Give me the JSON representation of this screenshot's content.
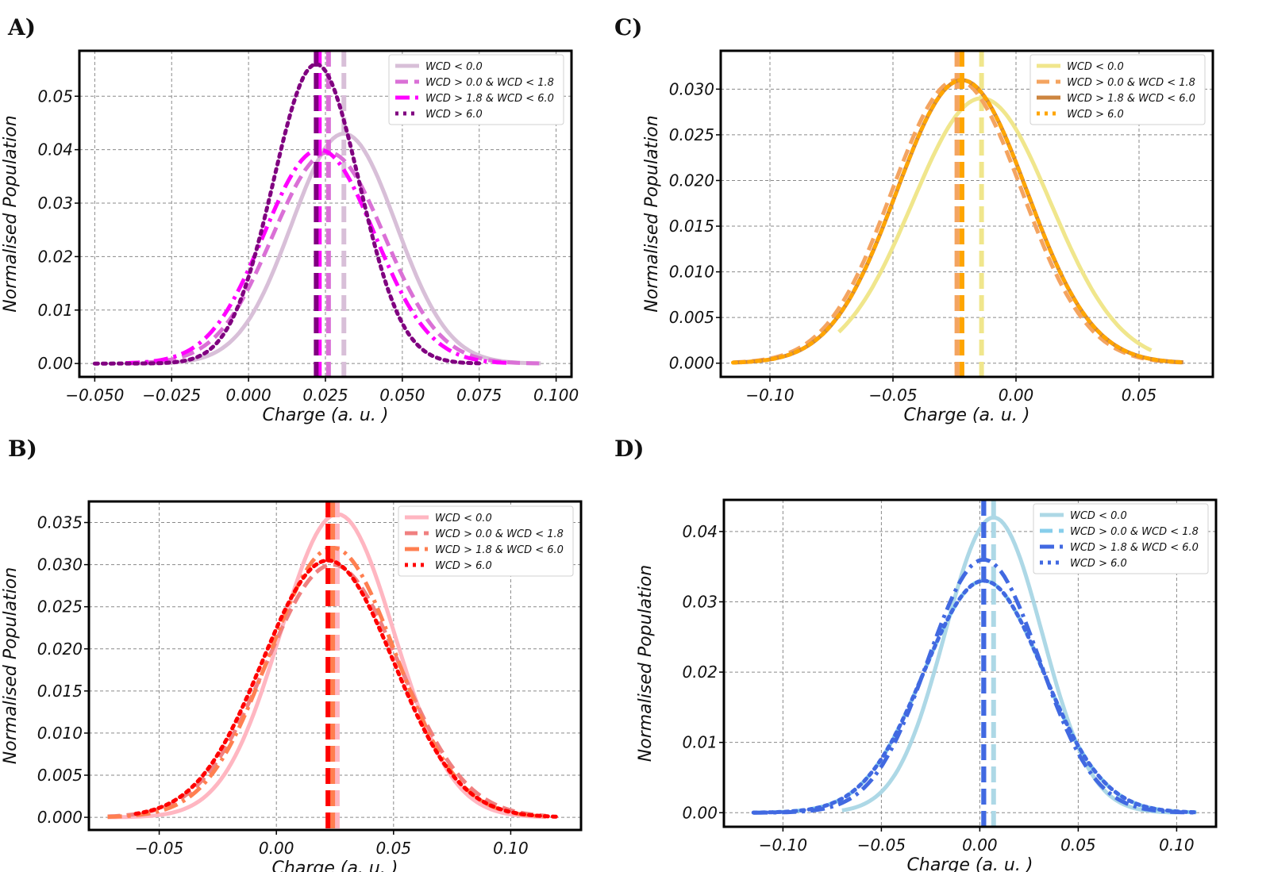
{
  "chart_data": [
    {
      "panel": "A)",
      "type": "line",
      "xlabel": "Charge (a. u. )",
      "ylabel": "Normalised Population",
      "xlim": [
        -0.055,
        0.105
      ],
      "ylim": [
        -0.0025,
        0.0585
      ],
      "xticks": [
        -0.05,
        -0.025,
        0.0,
        0.025,
        0.05,
        0.075,
        0.1
      ],
      "xtick_labels": [
        "−0.050",
        "−0.025",
        "0.000",
        "0.025",
        "0.050",
        "0.075",
        "0.100"
      ],
      "yticks": [
        0.0,
        0.01,
        0.02,
        0.03,
        0.04,
        0.05
      ],
      "ytick_labels": [
        "0.00",
        "0.01",
        "0.02",
        "0.03",
        "0.04",
        "0.05"
      ],
      "legend_position": "top-right",
      "series": [
        {
          "name": "WCD < 0.0",
          "color": "#d8bfd8",
          "style": "solid",
          "mean": 0.031,
          "peak": 0.043,
          "xrange": [
            -0.04,
            0.095
          ]
        },
        {
          "name": "WCD > 0.0 & WCD < 1.8",
          "color": "#da70d6",
          "style": "dashed",
          "mean": 0.026,
          "peak": 0.0395,
          "xrange": [
            -0.04,
            0.095
          ]
        },
        {
          "name": "WCD > 1.8 & WCD < 6.0",
          "color": "#ff00ff",
          "style": "dashdot",
          "mean": 0.023,
          "peak": 0.04,
          "xrange": [
            -0.04,
            0.085
          ]
        },
        {
          "name": "WCD > 6.0",
          "color": "#800080",
          "style": "dotted",
          "mean": 0.022,
          "peak": 0.056,
          "xrange": [
            -0.05,
            0.075
          ]
        }
      ]
    },
    {
      "panel": "B)",
      "type": "line",
      "xlabel": "Charge (a. u. )",
      "ylabel": "Normalised Population",
      "xlim": [
        -0.08,
        0.13
      ],
      "ylim": [
        -0.0015,
        0.0375
      ],
      "xticks": [
        -0.05,
        0.0,
        0.05,
        0.1
      ],
      "xtick_labels": [
        "−0.05",
        "0.00",
        "0.05",
        "0.10"
      ],
      "yticks": [
        0.0,
        0.005,
        0.01,
        0.015,
        0.02,
        0.025,
        0.03,
        0.035
      ],
      "ytick_labels": [
        "0.000",
        "0.005",
        "0.010",
        "0.015",
        "0.020",
        "0.025",
        "0.030",
        "0.035"
      ],
      "legend_position": "top-right",
      "series": [
        {
          "name": "WCD < 0.0",
          "color": "#ffb6c1",
          "style": "solid",
          "mean": 0.026,
          "peak": 0.036,
          "xrange": [
            -0.072,
            0.115
          ]
        },
        {
          "name": "WCD > 0.0 & WCD < 1.8",
          "color": "#f08080",
          "style": "dashed",
          "mean": 0.024,
          "peak": 0.03,
          "xrange": [
            -0.072,
            0.115
          ]
        },
        {
          "name": "WCD > 1.8 & WCD < 6.0",
          "color": "#ff7f50",
          "style": "dashdot",
          "mean": 0.024,
          "peak": 0.032,
          "xrange": [
            -0.072,
            0.115
          ]
        },
        {
          "name": "WCD > 6.0",
          "color": "#ff0000",
          "style": "dotted",
          "mean": 0.022,
          "peak": 0.0305,
          "xrange": [
            -0.06,
            0.12
          ]
        }
      ]
    },
    {
      "panel": "C)",
      "type": "line",
      "xlabel": "Charge (a. u. )",
      "ylabel": "Normalised Population",
      "xlim": [
        -0.12,
        0.08
      ],
      "ylim": [
        -0.0015,
        0.0342
      ],
      "xticks": [
        -0.1,
        -0.05,
        0.0,
        0.05
      ],
      "xtick_labels": [
        "−0.10",
        "−0.05",
        "0.00",
        "0.05"
      ],
      "yticks": [
        0.0,
        0.005,
        0.01,
        0.015,
        0.02,
        0.025,
        0.03
      ],
      "ytick_labels": [
        "0.000",
        "0.005",
        "0.010",
        "0.015",
        "0.020",
        "0.025",
        "0.030"
      ],
      "legend_position": "top-right",
      "series": [
        {
          "name": "WCD < 0.0",
          "color": "#f0e68c",
          "style": "solid",
          "mean": -0.014,
          "peak": 0.029,
          "xrange": [
            -0.072,
            0.055
          ]
        },
        {
          "name": "WCD > 0.0 & WCD < 1.8",
          "color": "#f4a460",
          "style": "dashed",
          "mean": -0.024,
          "peak": 0.031,
          "xrange": [
            -0.115,
            0.068
          ]
        },
        {
          "name": "WCD > 1.8 & WCD < 6.0",
          "color": "#cd853f",
          "style": "solid",
          "mean": -0.022,
          "peak": 0.031,
          "xrange": [
            -0.115,
            0.068
          ]
        },
        {
          "name": "WCD > 6.0",
          "color": "#ffa500",
          "style": "dotted",
          "mean": -0.022,
          "peak": 0.031,
          "xrange": [
            -0.115,
            0.068
          ]
        }
      ]
    },
    {
      "panel": "D)",
      "type": "line",
      "xlabel": "Charge (a. u. )",
      "ylabel": "Normalised Population",
      "xlim": [
        -0.13,
        0.12
      ],
      "ylim": [
        -0.002,
        0.0445
      ],
      "xticks": [
        -0.1,
        -0.05,
        0.0,
        0.05,
        0.1
      ],
      "xtick_labels": [
        "−0.10",
        "−0.05",
        "0.00",
        "0.05",
        "0.10"
      ],
      "yticks": [
        0.0,
        0.01,
        0.02,
        0.03,
        0.04
      ],
      "ytick_labels": [
        "0.00",
        "0.01",
        "0.02",
        "0.03",
        "0.04"
      ],
      "legend_position": "top-right",
      "series": [
        {
          "name": "WCD < 0.0",
          "color": "#add8e6",
          "style": "solid",
          "mean": 0.007,
          "peak": 0.042,
          "xrange": [
            -0.07,
            0.1
          ]
        },
        {
          "name": "WCD > 0.0 & WCD < 1.8",
          "color": "#87ceeb",
          "style": "dashed",
          "mean": 0.002,
          "peak": 0.033,
          "xrange": [
            -0.115,
            0.11
          ]
        },
        {
          "name": "WCD > 1.8 & WCD < 6.0",
          "color": "#4169e1",
          "style": "dashdot",
          "mean": 0.002,
          "peak": 0.036,
          "xrange": [
            -0.115,
            0.11
          ]
        },
        {
          "name": "WCD > 6.0",
          "color": "#4169e1",
          "style": "dotted",
          "mean": 0.002,
          "peak": 0.033,
          "xrange": [
            -0.115,
            0.11
          ]
        }
      ]
    }
  ]
}
